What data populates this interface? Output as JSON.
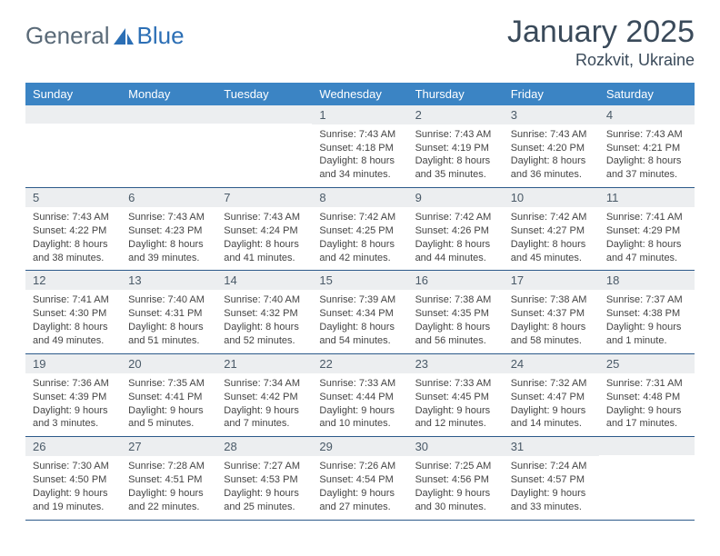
{
  "branding": {
    "logo_text_a": "General",
    "logo_text_b": "Blue",
    "logo_color_gray": "#5a6a78",
    "logo_color_blue": "#2c6fb5",
    "sail_fill": "#2c6fb5"
  },
  "header": {
    "title": "January 2025",
    "location": "Rozkvit, Ukraine"
  },
  "colors": {
    "header_bg": "#3b84c4",
    "daynum_bg": "#eceef0",
    "row_divider": "#2c5a8a",
    "text": "#333333"
  },
  "day_headers": [
    "Sunday",
    "Monday",
    "Tuesday",
    "Wednesday",
    "Thursday",
    "Friday",
    "Saturday"
  ],
  "weeks": [
    [
      {
        "empty": true
      },
      {
        "empty": true
      },
      {
        "empty": true
      },
      {
        "day": "1",
        "sunrise": "7:43 AM",
        "sunset": "4:18 PM",
        "daylight": "8 hours and 34 minutes."
      },
      {
        "day": "2",
        "sunrise": "7:43 AM",
        "sunset": "4:19 PM",
        "daylight": "8 hours and 35 minutes."
      },
      {
        "day": "3",
        "sunrise": "7:43 AM",
        "sunset": "4:20 PM",
        "daylight": "8 hours and 36 minutes."
      },
      {
        "day": "4",
        "sunrise": "7:43 AM",
        "sunset": "4:21 PM",
        "daylight": "8 hours and 37 minutes."
      }
    ],
    [
      {
        "day": "5",
        "sunrise": "7:43 AM",
        "sunset": "4:22 PM",
        "daylight": "8 hours and 38 minutes."
      },
      {
        "day": "6",
        "sunrise": "7:43 AM",
        "sunset": "4:23 PM",
        "daylight": "8 hours and 39 minutes."
      },
      {
        "day": "7",
        "sunrise": "7:43 AM",
        "sunset": "4:24 PM",
        "daylight": "8 hours and 41 minutes."
      },
      {
        "day": "8",
        "sunrise": "7:42 AM",
        "sunset": "4:25 PM",
        "daylight": "8 hours and 42 minutes."
      },
      {
        "day": "9",
        "sunrise": "7:42 AM",
        "sunset": "4:26 PM",
        "daylight": "8 hours and 44 minutes."
      },
      {
        "day": "10",
        "sunrise": "7:42 AM",
        "sunset": "4:27 PM",
        "daylight": "8 hours and 45 minutes."
      },
      {
        "day": "11",
        "sunrise": "7:41 AM",
        "sunset": "4:29 PM",
        "daylight": "8 hours and 47 minutes."
      }
    ],
    [
      {
        "day": "12",
        "sunrise": "7:41 AM",
        "sunset": "4:30 PM",
        "daylight": "8 hours and 49 minutes."
      },
      {
        "day": "13",
        "sunrise": "7:40 AM",
        "sunset": "4:31 PM",
        "daylight": "8 hours and 51 minutes."
      },
      {
        "day": "14",
        "sunrise": "7:40 AM",
        "sunset": "4:32 PM",
        "daylight": "8 hours and 52 minutes."
      },
      {
        "day": "15",
        "sunrise": "7:39 AM",
        "sunset": "4:34 PM",
        "daylight": "8 hours and 54 minutes."
      },
      {
        "day": "16",
        "sunrise": "7:38 AM",
        "sunset": "4:35 PM",
        "daylight": "8 hours and 56 minutes."
      },
      {
        "day": "17",
        "sunrise": "7:38 AM",
        "sunset": "4:37 PM",
        "daylight": "8 hours and 58 minutes."
      },
      {
        "day": "18",
        "sunrise": "7:37 AM",
        "sunset": "4:38 PM",
        "daylight": "9 hours and 1 minute."
      }
    ],
    [
      {
        "day": "19",
        "sunrise": "7:36 AM",
        "sunset": "4:39 PM",
        "daylight": "9 hours and 3 minutes."
      },
      {
        "day": "20",
        "sunrise": "7:35 AM",
        "sunset": "4:41 PM",
        "daylight": "9 hours and 5 minutes."
      },
      {
        "day": "21",
        "sunrise": "7:34 AM",
        "sunset": "4:42 PM",
        "daylight": "9 hours and 7 minutes."
      },
      {
        "day": "22",
        "sunrise": "7:33 AM",
        "sunset": "4:44 PM",
        "daylight": "9 hours and 10 minutes."
      },
      {
        "day": "23",
        "sunrise": "7:33 AM",
        "sunset": "4:45 PM",
        "daylight": "9 hours and 12 minutes."
      },
      {
        "day": "24",
        "sunrise": "7:32 AM",
        "sunset": "4:47 PM",
        "daylight": "9 hours and 14 minutes."
      },
      {
        "day": "25",
        "sunrise": "7:31 AM",
        "sunset": "4:48 PM",
        "daylight": "9 hours and 17 minutes."
      }
    ],
    [
      {
        "day": "26",
        "sunrise": "7:30 AM",
        "sunset": "4:50 PM",
        "daylight": "9 hours and 19 minutes."
      },
      {
        "day": "27",
        "sunrise": "7:28 AM",
        "sunset": "4:51 PM",
        "daylight": "9 hours and 22 minutes."
      },
      {
        "day": "28",
        "sunrise": "7:27 AM",
        "sunset": "4:53 PM",
        "daylight": "9 hours and 25 minutes."
      },
      {
        "day": "29",
        "sunrise": "7:26 AM",
        "sunset": "4:54 PM",
        "daylight": "9 hours and 27 minutes."
      },
      {
        "day": "30",
        "sunrise": "7:25 AM",
        "sunset": "4:56 PM",
        "daylight": "9 hours and 30 minutes."
      },
      {
        "day": "31",
        "sunrise": "7:24 AM",
        "sunset": "4:57 PM",
        "daylight": "9 hours and 33 minutes."
      },
      {
        "empty": true
      }
    ]
  ],
  "labels": {
    "sunrise_prefix": "Sunrise: ",
    "sunset_prefix": "Sunset: ",
    "daylight_prefix": "Daylight: "
  }
}
